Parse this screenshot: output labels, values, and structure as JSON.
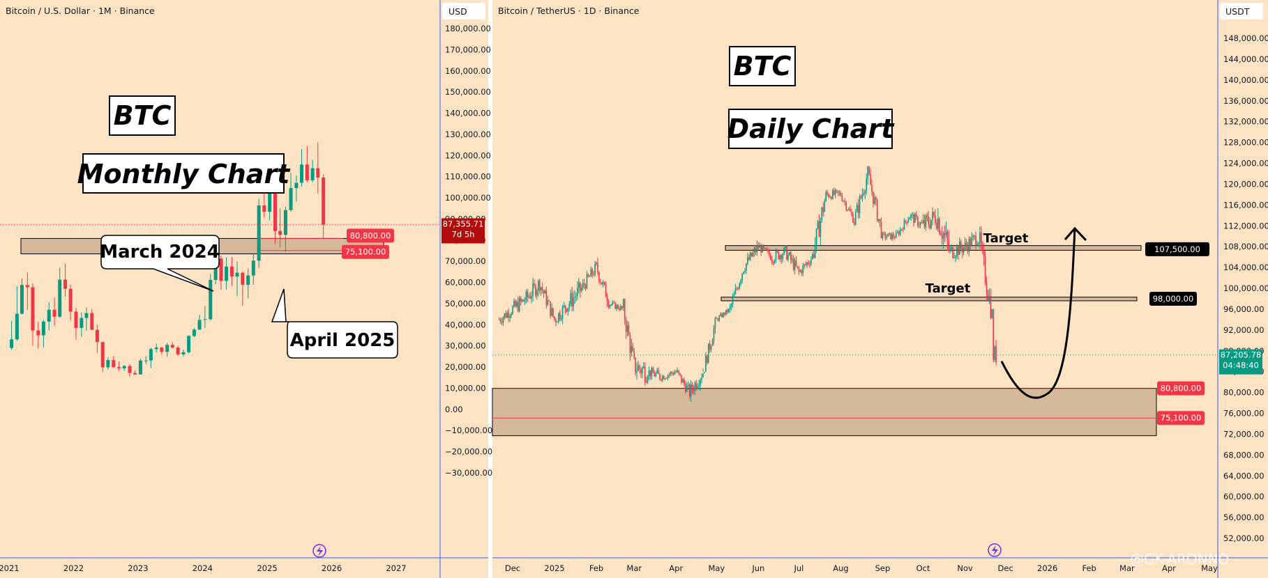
{
  "colors": {
    "background": "#fbe3c4",
    "up": "#089981",
    "down": "#f23645",
    "zone": "#d6b89a",
    "badge_red": "#f23645",
    "badge_black": "#000000",
    "badge_green": "#089981",
    "axis_line": "#2962ff"
  },
  "left_panel": {
    "title": "Bitcoin / U.S. Dollar · 1M · Binance",
    "currency": "USD",
    "label_btc": "BTC",
    "label_chart": "Monthly Chart",
    "annotation_1": "March 2024",
    "annotation_2": "April 2025",
    "price_badge": "87,355.71",
    "countdown_badge": "7d 5h",
    "level_1_badge": "80,800.00",
    "level_2_badge": "75,100.00",
    "y_ticks": [
      "180,000.00",
      "170,000.00",
      "160,000.00",
      "150,000.00",
      "140,000.00",
      "130,000.00",
      "120,000.00",
      "110,000.00",
      "100,000.00",
      "90,000.00",
      "80,000.00",
      "70,000.00",
      "60,000.00",
      "50,000.00",
      "40,000.00",
      "30,000.00",
      "20,000.00",
      "10,000.00",
      "0.00",
      "−10,000.00",
      "−20,000.00",
      "−30,000.00"
    ],
    "x_ticks": [
      "2021",
      "2022",
      "2023",
      "2024",
      "2025",
      "2026",
      "2027"
    ]
  },
  "right_panel": {
    "title": "Bitcoin / TetherUS · 1D · Binance",
    "currency": "USDT",
    "label_btc": "BTC",
    "label_chart": "Daily Chart",
    "target_1": "Target",
    "target_2": "Target",
    "level_upper_badge": "107,500.00",
    "level_mid_badge": "98,000.00",
    "price_badge": "87,205.78",
    "countdown_badge": "04:48:40",
    "level_1_badge": "80,800.00",
    "level_2_badge": "75,100.00",
    "y_ticks": [
      "148,000.00",
      "144,000.00",
      "140,000.00",
      "136,000.00",
      "132,000.00",
      "128,000.00",
      "124,000.00",
      "120,000.00",
      "116,000.00",
      "112,000.00",
      "108,000.00",
      "104,000.00",
      "100,000.00",
      "96,000.00",
      "92,000.00",
      "88,000.00",
      "84,000.00",
      "80,000.00",
      "76,000.00",
      "72,000.00",
      "68,000.00",
      "64,000.00",
      "60,000.00",
      "56,000.00",
      "52,000.00"
    ],
    "x_ticks": [
      "Dec",
      "2025",
      "Feb",
      "Mar",
      "Apr",
      "May",
      "Jun",
      "Jul",
      "Aug",
      "Sep",
      "Oct",
      "Nov",
      "Dec",
      "2026",
      "Feb",
      "Mar",
      "Apr",
      "May"
    ],
    "watermark": "@GK-ARONNO"
  },
  "chart_data": [
    {
      "type": "candlestick",
      "title": "Bitcoin / U.S. Dollar · 1M · Binance",
      "xlabel": "",
      "ylabel": "USD",
      "ylim": [
        -30000,
        180000
      ],
      "x": [
        "2021-01",
        "2021-02",
        "2021-03",
        "2021-04",
        "2021-05",
        "2021-06",
        "2021-07",
        "2021-08",
        "2021-09",
        "2021-10",
        "2021-11",
        "2021-12",
        "2022-01",
        "2022-02",
        "2022-03",
        "2022-04",
        "2022-05",
        "2022-06",
        "2022-07",
        "2022-08",
        "2022-09",
        "2022-10",
        "2022-11",
        "2022-12",
        "2023-01",
        "2023-02",
        "2023-03",
        "2023-04",
        "2023-05",
        "2023-06",
        "2023-07",
        "2023-08",
        "2023-09",
        "2023-10",
        "2023-11",
        "2023-12",
        "2024-01",
        "2024-02",
        "2024-03",
        "2024-04",
        "2024-05",
        "2024-06",
        "2024-07",
        "2024-08",
        "2024-09",
        "2024-10",
        "2024-11",
        "2024-12",
        "2025-01",
        "2025-02",
        "2025-03",
        "2025-04",
        "2025-05",
        "2025-06",
        "2025-07",
        "2025-08",
        "2025-09",
        "2025-10",
        "2025-11"
      ],
      "open": [
        29000,
        33100,
        45200,
        58800,
        57700,
        37300,
        35000,
        41500,
        47100,
        43800,
        61300,
        57000,
        46200,
        38500,
        43200,
        45500,
        37600,
        31800,
        19900,
        23300,
        20000,
        19400,
        20500,
        17200,
        16500,
        23100,
        23100,
        28500,
        29200,
        27200,
        30500,
        29200,
        26000,
        27000,
        34700,
        37700,
        42300,
        42600,
        61200,
        71300,
        60700,
        67500,
        62800,
        64600,
        58900,
        63300,
        70300,
        96400,
        93400,
        102400,
        84300,
        82500,
        94200,
        104600,
        107100,
        115700,
        108300,
        114000,
        109600
      ],
      "high": [
        41900,
        58300,
        61800,
        64800,
        59500,
        41300,
        42400,
        50500,
        52900,
        67000,
        69000,
        59000,
        47900,
        45800,
        48200,
        47400,
        40000,
        31900,
        24600,
        25200,
        22700,
        21000,
        21400,
        18400,
        23900,
        25200,
        29200,
        31000,
        29800,
        31400,
        31800,
        30100,
        28300,
        35000,
        38400,
        44700,
        48900,
        64000,
        73800,
        72800,
        71900,
        72000,
        70000,
        65100,
        66500,
        73600,
        99600,
        108300,
        109600,
        102500,
        95000,
        95800,
        111900,
        110500,
        123100,
        124500,
        117900,
        126200,
        111200
      ],
      "low": [
        28100,
        32400,
        44900,
        47000,
        30000,
        28800,
        29300,
        37300,
        39600,
        43300,
        53300,
        42000,
        33000,
        34300,
        37200,
        37600,
        26700,
        17600,
        18800,
        19600,
        18200,
        18200,
        15500,
        16300,
        16500,
        21400,
        19500,
        26900,
        25800,
        24800,
        28900,
        25200,
        24900,
        26500,
        34100,
        37600,
        38500,
        41900,
        59100,
        56500,
        56600,
        58400,
        53500,
        49000,
        52500,
        58900,
        66800,
        90500,
        89300,
        78200,
        76600,
        74500,
        93400,
        98200,
        105300,
        107400,
        107300,
        102000,
        80600
      ],
      "close": [
        33100,
        45200,
        58800,
        57700,
        37300,
        35000,
        41500,
        47100,
        43800,
        61300,
        57000,
        46200,
        38500,
        43200,
        45500,
        37600,
        31800,
        19900,
        23300,
        20000,
        19400,
        20500,
        17200,
        16500,
        23100,
        23100,
        28500,
        29200,
        27200,
        30500,
        29200,
        26000,
        27000,
        34700,
        37700,
        42300,
        42600,
        61200,
        71300,
        60700,
        67500,
        62800,
        64600,
        58900,
        63300,
        70300,
        96400,
        93400,
        102400,
        84300,
        82500,
        94200,
        104600,
        107100,
        115700,
        108300,
        114000,
        109600,
        87355.71
      ]
    },
    {
      "type": "candlestick",
      "title": "Bitcoin / TetherUS · 1D · Binance",
      "xlabel": "",
      "ylabel": "USDT",
      "ylim": [
        50000,
        150000
      ],
      "x": [
        "2024-11-21",
        "2024-12-01",
        "2024-12-11",
        "2024-12-21",
        "2025-01-01",
        "2025-01-11",
        "2025-01-21",
        "2025-02-01",
        "2025-02-11",
        "2025-02-21",
        "2025-03-01",
        "2025-03-11",
        "2025-03-21",
        "2025-04-01",
        "2025-04-11",
        "2025-04-21",
        "2025-05-01",
        "2025-05-11",
        "2025-05-21",
        "2025-06-01",
        "2025-06-11",
        "2025-06-21",
        "2025-07-01",
        "2025-07-11",
        "2025-07-21",
        "2025-08-01",
        "2025-08-11",
        "2025-08-21",
        "2025-09-01",
        "2025-09-11",
        "2025-09-21",
        "2025-10-01",
        "2025-10-11",
        "2025-10-21",
        "2025-11-01",
        "2025-11-11",
        "2025-11-21"
      ],
      "open": [
        94000,
        96000,
        98000,
        101000,
        94000,
        97000,
        100000,
        104000,
        97000,
        96000,
        85000,
        84000,
        83000,
        84000,
        80000,
        84000,
        94000,
        96000,
        104000,
        108000,
        106000,
        107000,
        103000,
        106000,
        118000,
        118000,
        113000,
        122000,
        110000,
        110000,
        114000,
        112000,
        114000,
        107000,
        108000,
        110000,
        95000
      ],
      "high": [
        99000,
        104000,
        108000,
        103000,
        102000,
        106000,
        109000,
        106000,
        99000,
        98000,
        95000,
        85000,
        88000,
        88000,
        86000,
        95000,
        97000,
        105000,
        112000,
        111000,
        110000,
        108000,
        110000,
        123000,
        121000,
        119000,
        124500,
        123000,
        113000,
        116000,
        116000,
        126200,
        125000,
        115000,
        116000,
        112000,
        96000
      ],
      "low": [
        90000,
        93000,
        96000,
        92000,
        91000,
        92000,
        99000,
        95000,
        94000,
        81000,
        78000,
        76600,
        82000,
        79000,
        74500,
        84000,
        93000,
        95000,
        102000,
        104000,
        101000,
        98000,
        102000,
        106000,
        114000,
        112000,
        112000,
        110000,
        107500,
        110000,
        108000,
        111000,
        104000,
        103000,
        105000,
        94000,
        80600
      ],
      "close": [
        96000,
        98000,
        101000,
        94000,
        97000,
        100000,
        104000,
        97000,
        96000,
        85000,
        84000,
        83000,
        84000,
        80000,
        84000,
        94000,
        96000,
        104000,
        108000,
        106000,
        107000,
        103000,
        106000,
        118000,
        118000,
        113000,
        122000,
        110000,
        110000,
        114000,
        112000,
        114000,
        107000,
        108000,
        110000,
        95000,
        87205.78
      ]
    }
  ],
  "projection": {
    "path_prices": [
      86000,
      80800,
      80300,
      107500
    ],
    "arrow_tip_price": 111500
  }
}
